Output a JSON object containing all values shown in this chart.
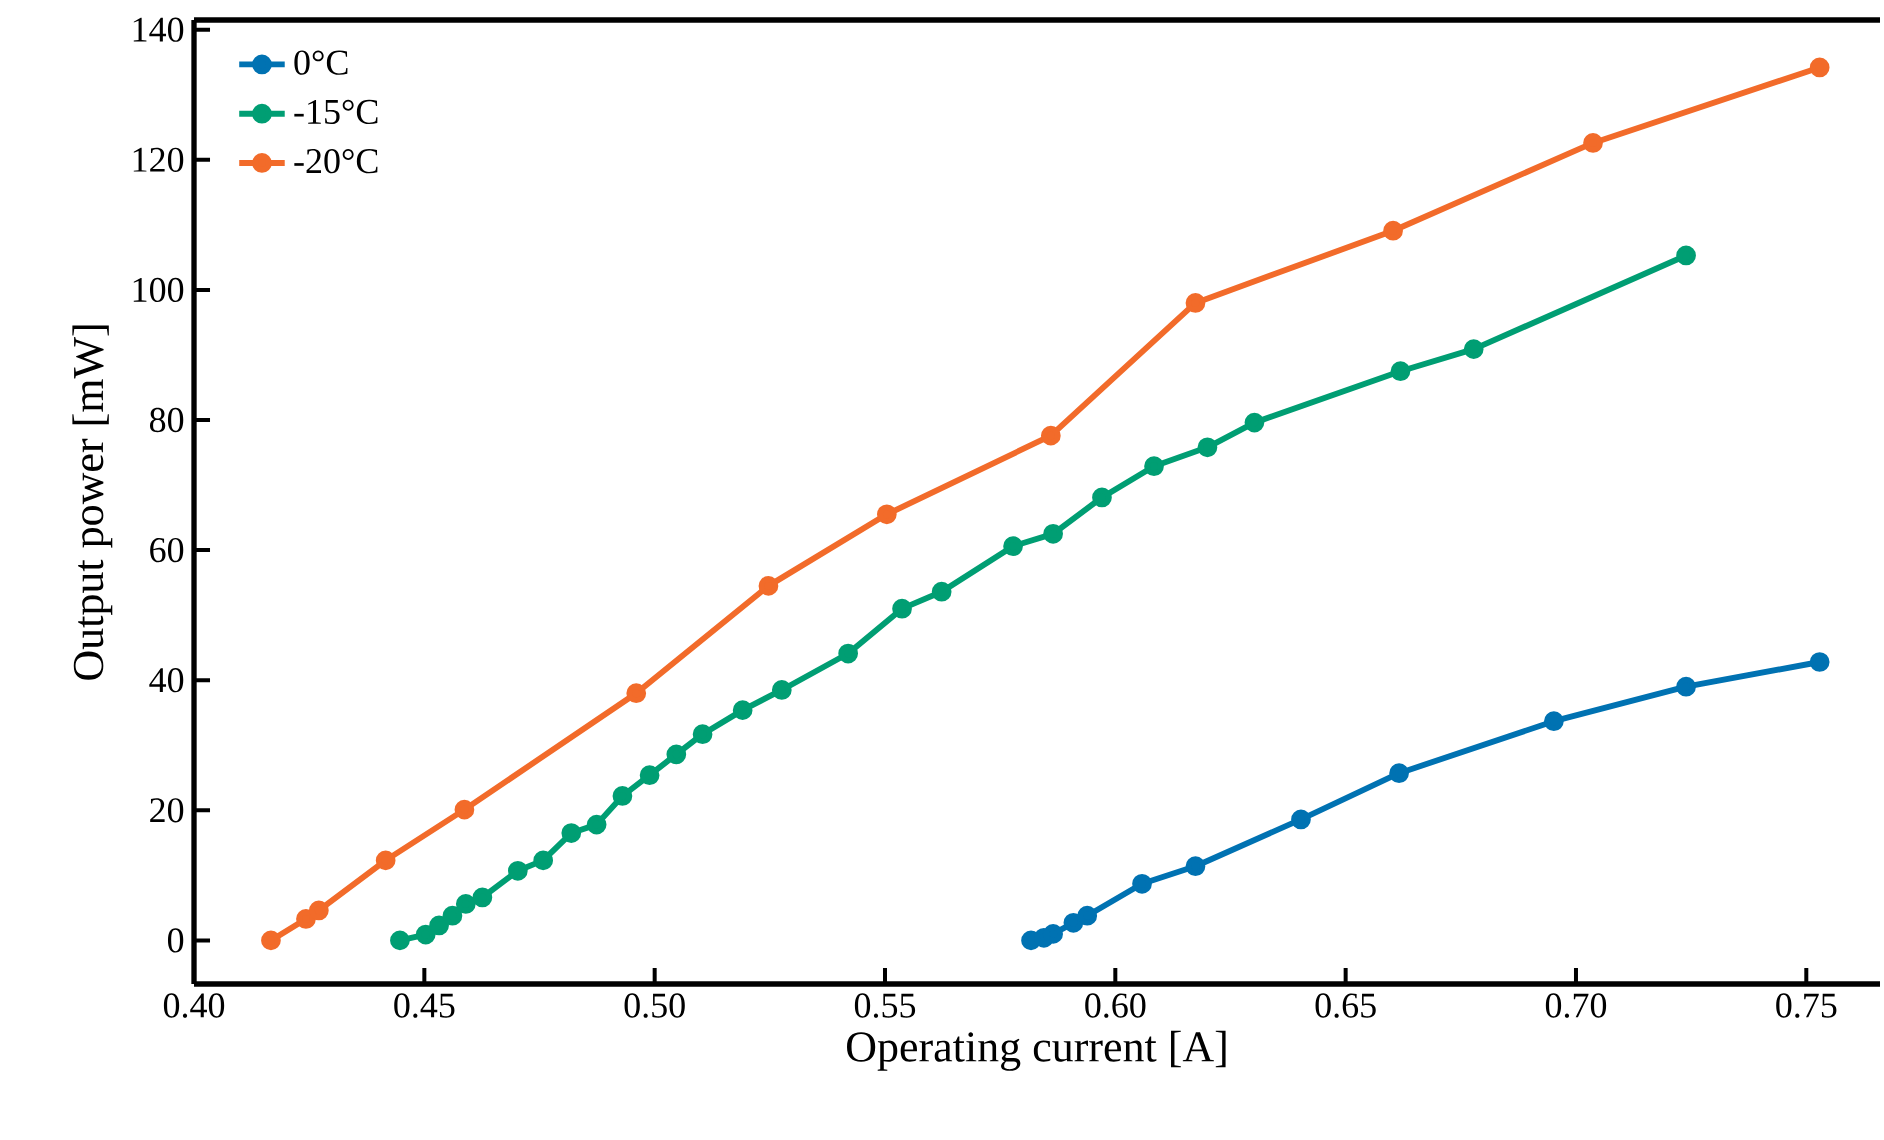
{
  "chart_data": {
    "type": "line",
    "xlabel": "Operating current [A]",
    "ylabel": "Output power [mW]",
    "xlim": [
      0.4,
      0.766
    ],
    "ylim": [
      -6.7,
      141.5
    ],
    "xticks": [
      {
        "value": 0.4,
        "label": "0.40"
      },
      {
        "value": 0.45,
        "label": "0.45"
      },
      {
        "value": 0.5,
        "label": "0.50"
      },
      {
        "value": 0.55,
        "label": "0.55"
      },
      {
        "value": 0.6,
        "label": "0.60"
      },
      {
        "value": 0.65,
        "label": "0.65"
      },
      {
        "value": 0.7,
        "label": "0.70"
      },
      {
        "value": 0.75,
        "label": "0.75"
      }
    ],
    "yticks": [
      0,
      20,
      40,
      60,
      80,
      100,
      120,
      140
    ],
    "legend": "top left",
    "marker": "circle",
    "line_style": "solid",
    "grid": false,
    "series": [
      {
        "name": "0°C",
        "color": "#0072b2",
        "x": [
          0.5817,
          0.5845,
          0.5865,
          0.5909,
          0.5939,
          0.6058,
          0.6174,
          0.6403,
          0.6616,
          0.6952,
          0.7239,
          0.7529
        ],
        "values": [
          0,
          0.4,
          1.0,
          2.7,
          3.8,
          8.7,
          11.4,
          18.6,
          25.7,
          33.7,
          39.0,
          42.8
        ]
      },
      {
        "name": "-15°C",
        "color": "#009e73",
        "x": [
          0.4447,
          0.4503,
          0.4532,
          0.4561,
          0.459,
          0.4626,
          0.4703,
          0.4758,
          0.4819,
          0.4874,
          0.493,
          0.4989,
          0.5047,
          0.5104,
          0.5191,
          0.5276,
          0.542,
          0.5537,
          0.5623,
          0.5778,
          0.5865,
          0.5971,
          0.6084,
          0.62,
          0.6302,
          0.6619,
          0.6778,
          0.7239
        ],
        "values": [
          0,
          0.9,
          2.3,
          3.8,
          5.6,
          6.6,
          10.7,
          12.3,
          16.5,
          17.8,
          22.2,
          25.4,
          28.6,
          31.7,
          35.4,
          38.5,
          44.1,
          51.0,
          53.6,
          60.6,
          62.5,
          68.1,
          72.9,
          75.8,
          79.6,
          87.5,
          90.9,
          105.3
        ]
      },
      {
        "name": "-20°C",
        "color": "#f26b2a",
        "x": [
          0.4167,
          0.4243,
          0.4271,
          0.4416,
          0.4587,
          0.496,
          0.5247,
          0.5504,
          0.586,
          0.6174,
          0.6603,
          0.7037,
          0.7529
        ],
        "values": [
          0,
          3.3,
          4.6,
          12.3,
          20.1,
          38.0,
          54.5,
          65.5,
          77.6,
          98.0,
          109.1,
          122.6,
          134.2
        ]
      }
    ]
  }
}
